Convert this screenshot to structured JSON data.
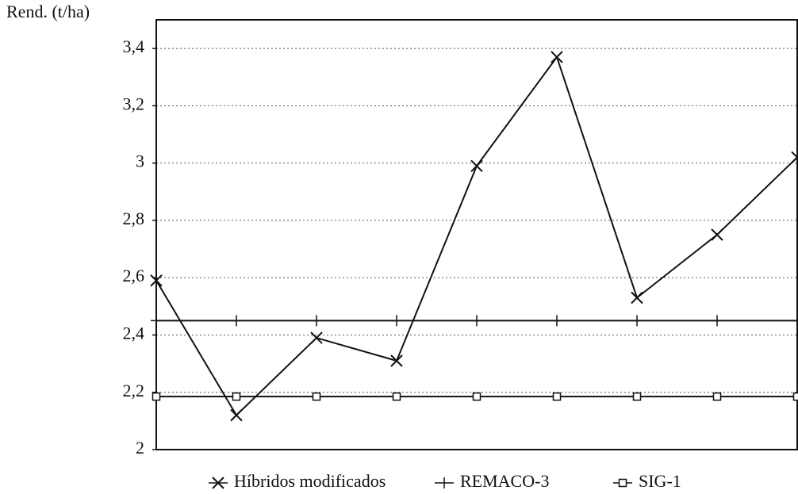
{
  "chart_data": {
    "type": "line",
    "y_label": "Rend. (t/ha)",
    "categories": [
      null,
      null,
      null,
      null,
      null,
      null,
      null,
      null,
      null
    ],
    "series": [
      {
        "name": "Híbridos modificados",
        "color": "#111111",
        "marker": "x",
        "values": [
          2.59,
          2.12,
          2.39,
          2.31,
          2.99,
          3.37,
          2.53,
          2.75,
          3.02
        ]
      },
      {
        "name": "REMACO-3",
        "color": "#111111",
        "marker": "plus",
        "values": [
          2.45,
          2.45,
          2.45,
          2.45,
          2.45,
          2.45,
          2.45,
          2.45,
          2.45
        ]
      },
      {
        "name": "SIG-1",
        "color": "#111111",
        "marker": "square",
        "values": [
          2.185,
          2.185,
          2.185,
          2.185,
          2.185,
          2.185,
          2.185,
          2.185,
          2.185
        ]
      }
    ],
    "ylim": [
      2,
      3.5
    ],
    "yticks": [
      2,
      {
        "value": 2.2,
        "label": "2,2"
      },
      {
        "value": 2.4,
        "label": "2,4"
      },
      {
        "value": 2.6,
        "label": "2,6"
      },
      {
        "value": 2.8,
        "label": "2,8"
      },
      3,
      {
        "value": 3.2,
        "label": "3,2"
      },
      {
        "value": 3.4,
        "label": "3,4"
      }
    ],
    "grid": true,
    "legend": "bottom"
  }
}
